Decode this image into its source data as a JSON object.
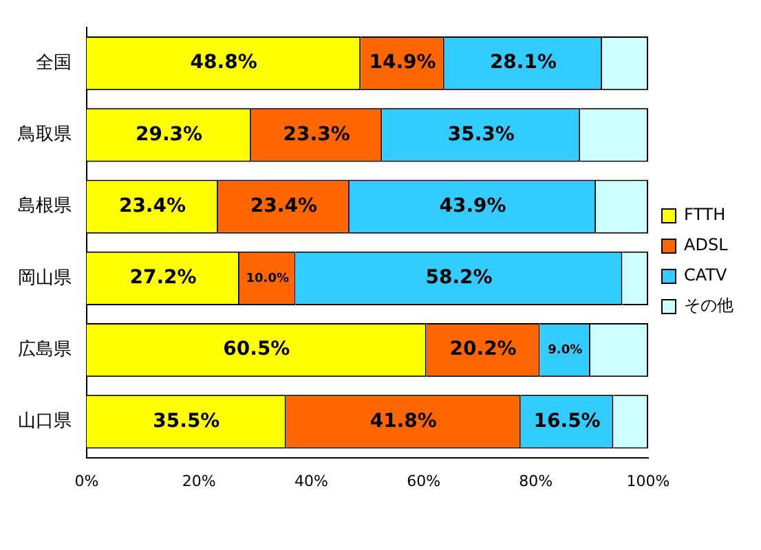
{
  "chart_data": {
    "type": "bar",
    "orientation": "horizontal",
    "stacked": true,
    "categories": [
      "全国",
      "鳥取県",
      "島根県",
      "岡山県",
      "広島県",
      "山口県"
    ],
    "series": [
      {
        "name": "FTTH",
        "color": "#ffff00",
        "values": [
          48.8,
          29.3,
          23.4,
          27.2,
          60.5,
          35.5
        ],
        "value_labels": [
          "48.8%",
          "29.3%",
          "23.4%",
          "27.2%",
          "60.5%",
          "35.5%"
        ]
      },
      {
        "name": "ADSL",
        "color": "#ff6600",
        "values": [
          14.9,
          23.3,
          23.4,
          10.0,
          20.2,
          41.8
        ],
        "value_labels": [
          "14.9%",
          "23.3%",
          "23.4%",
          "10.0%",
          "20.2%",
          "41.8%"
        ]
      },
      {
        "name": "CATV",
        "color": "#33ccff",
        "values": [
          28.1,
          35.3,
          43.9,
          58.2,
          9.0,
          16.5
        ],
        "value_labels": [
          "28.1%",
          "35.3%",
          "43.9%",
          "58.2%",
          "9.0%",
          "16.5%"
        ]
      },
      {
        "name": "その他",
        "color": "#ccffff",
        "values": [
          8.2,
          12.1,
          9.3,
          4.6,
          10.3,
          6.2
        ],
        "value_labels": [
          null,
          null,
          null,
          null,
          null,
          null
        ]
      }
    ],
    "xlim": [
      0,
      100
    ],
    "xticks": [
      {
        "value": 0,
        "label": "0%"
      },
      {
        "value": 20,
        "label": "20%"
      },
      {
        "value": 40,
        "label": "40%"
      },
      {
        "value": 60,
        "label": "60%"
      },
      {
        "value": 80,
        "label": "80%"
      },
      {
        "value": 100,
        "label": "100%"
      }
    ],
    "grid": false,
    "legend": "right"
  }
}
